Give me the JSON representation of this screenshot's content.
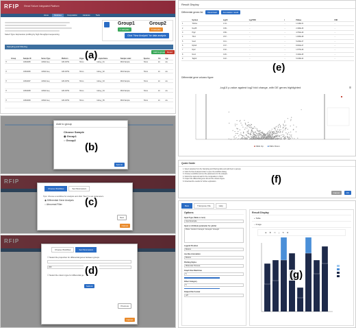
{
  "labels": {
    "a": "(a)",
    "b": "(b)",
    "c": "(c)",
    "d": "(d)",
    "e": "(e)",
    "f": "(f)",
    "g": "(g)"
  },
  "app": {
    "logo": "RFIP",
    "subtitle": "Renal Failure Integrated Platform",
    "nav": [
      "Home",
      "Database",
      "Computation",
      "Literature",
      "Tools"
    ]
  },
  "panel_a": {
    "intro": "Select Type: Expression profiling by high throughput sequencing",
    "group1": "Group1",
    "group2": "Group2",
    "group1_btn": "1 samples",
    "group2_btn": "0 samples",
    "analyze_btn": "Click \"New Analysis\" for data analysis",
    "section": "Sampling and Filtering",
    "add_group": "Add to group",
    "reset": "Reset",
    "columns": [
      "",
      "Group",
      "Sample ID",
      "Series Type",
      "Platform",
      "Organism",
      "Sample Name",
      "Sample Label",
      "Species",
      "Kit",
      "Age"
    ],
    "rows": [
      [
        "",
        "",
        "GSM1095",
        "mRNA-Seq",
        "GPL16791",
        "Homo",
        "kidney_S1",
        "RNA Sample",
        "Homo",
        "kit",
        "n/a"
      ],
      [
        "",
        "",
        "GSM1096",
        "mRNA-Seq",
        "GPL16791",
        "Homo",
        "kidney_S2",
        "RNA Sample",
        "Homo",
        "kit",
        "n/a"
      ],
      [
        "",
        "",
        "GSM1097",
        "mRNA-Seq",
        "GPL16791",
        "Homo",
        "kidney_S3",
        "RNA Sample",
        "Homo",
        "kit",
        "n/a"
      ],
      [
        "",
        "",
        "GSM1098",
        "mRNA-Seq",
        "GPL16791",
        "Homo",
        "kidney_S4",
        "RNA Sample",
        "Homo",
        "kit",
        "n/a"
      ],
      [
        "",
        "",
        "GSM1099",
        "mRNA-Seq",
        "GPL16791",
        "Homo",
        "kidney_S5",
        "RNA Sample",
        "Homo",
        "kit",
        "n/a"
      ]
    ]
  },
  "panel_b": {
    "title": "Add to group",
    "choose": "Choose  Sample",
    "opt1": "Group1",
    "opt2": "Group2",
    "submit": "Submit"
  },
  "panel_c": {
    "tab1": "Choose Workflow",
    "tab2": "Set Parameters",
    "hint": "Tips: Choose a workflow for analysis and click \"Next\" to set parameters.",
    "opt1": "Differential Gene Analysis",
    "opt2": "Abnormal Filter",
    "next": "Next",
    "cancel": "Cancel"
  },
  "panel_d": {
    "tab1": "Choose Workflow",
    "tab2": "Set Parameters",
    "check1": "Select the proportion for differential genes between groups",
    "check2": "Select the column type for differential gene analysis",
    "value": "200",
    "submit": "Submit",
    "previous": "Previous",
    "cancel": "Cancel"
  },
  "panel_e": {
    "title": "Result Display",
    "diffgenes": "Differential genes list",
    "download": "Download",
    "annotate": "Annotation result",
    "columns": [
      "",
      "Symbol",
      "logFC",
      "log2TPM",
      "t",
      "PValue",
      "FDR"
    ],
    "rows": [
      [
        "1",
        "Tdrd1a",
        "1.34...",
        "...",
        "...",
        "1.110E-31",
        "..."
      ],
      [
        "2",
        "Nup35",
        "0.99...",
        "...",
        "...",
        "2.400E-30",
        "..."
      ],
      [
        "3",
        "Hrg2",
        "0.89...",
        "...",
        "...",
        "4.761E-29",
        "..."
      ],
      [
        "4",
        "Tfrc2",
        "0.57...",
        "...",
        "...",
        "1.003E-28",
        "..."
      ],
      [
        "5",
        "Sox2",
        "0.41...",
        "...",
        "...",
        "5.224E-27",
        "..."
      ],
      [
        "6",
        "Nphs3",
        "0.37...",
        "...",
        "...",
        "8.001E-27",
        "..."
      ],
      [
        "7",
        "Npr2",
        "0.32...",
        "...",
        "...",
        "1.977E-26",
        "..."
      ],
      [
        "8",
        "Nxs4",
        "0.26...",
        "...",
        "...",
        "3.441E-25",
        "..."
      ],
      [
        "9",
        "Tagln2",
        "0.22...",
        "...",
        "...",
        "6.100E-24",
        "..."
      ]
    ],
    "volcano_tab": "Differential gene volcano figure",
    "plot_title": "-log10 p-value against log2 fold change, with DE genes highlighted",
    "legend": [
      "DEG Up",
      "DEG Down"
    ],
    "colors": {
      "up": "#c0392b",
      "down": "#2a6cc4",
      "ns": "#9a9a9a"
    }
  },
  "panel_f": {
    "title": "Quick Guide",
    "lines": [
      "1. Select samples from the Sampling and Filtering table and add them to groups.",
      "2. Click the New Analysis button to open the workflow dialog.",
      "3. Choose a workflow and set the parameters for the analysis.",
      "4. Submit the task and wait for the computation to finish.",
      "5. Inspect the differential genes list and the volcano figure.",
      "6. Download the results for further exploration."
    ],
    "cancel": "Cancel",
    "ok": "OK"
  },
  "panel_g": {
    "tabs": [
      "Bars",
      "Transpose File",
      "Help"
    ],
    "options_title": "Options",
    "display_title": "Result Display",
    "fields": [
      {
        "label": "Input Type (Table or text)",
        "value": "Input Example"
      },
      {
        "label": "Input or Attribute parameter for plotter",
        "value": "Plots / Control / Group1 / Group2 / Group3"
      },
      {
        "label": "Legend Position",
        "value": "Bottom"
      },
      {
        "label": "Ascribe Annotation",
        "value": "Bottom"
      },
      {
        "label": "Plotting Styles",
        "value": "Molecular Process"
      },
      {
        "label": "Graph Size Max/Area",
        "value": "5"
      },
      {
        "label": "Other Category",
        "value": "5"
      },
      {
        "label": "Output File Format",
        "value": "pdf"
      }
    ],
    "collapsed": [
      "Table",
      "Image"
    ],
    "chart_colors": {
      "dark": "#1e2a4a",
      "light": "#4a8fd8",
      "lighter": "#9ec8ee"
    }
  }
}
